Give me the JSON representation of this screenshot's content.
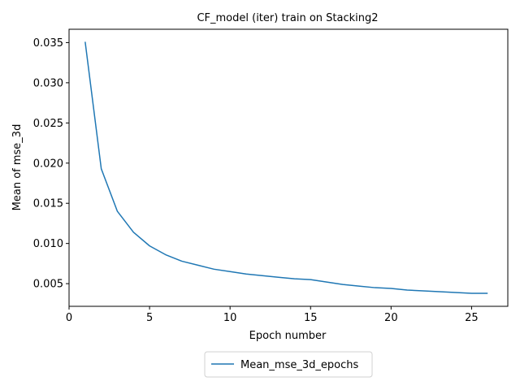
{
  "chart_data": {
    "type": "line",
    "title": "CF_model (iter) train on Stacking2",
    "xlabel": "Epoch number",
    "ylabel": "Mean of mse_3d",
    "xlim": [
      0,
      27.25
    ],
    "ylim": [
      0.00218,
      0.03666
    ],
    "xticks": [
      0,
      5,
      10,
      15,
      20,
      25
    ],
    "xtick_labels": [
      "0",
      "5",
      "10",
      "15",
      "20",
      "25"
    ],
    "yticks": [
      0.005,
      0.01,
      0.015,
      0.02,
      0.025,
      0.03,
      0.035
    ],
    "ytick_labels": [
      "0.005",
      "0.010",
      "0.015",
      "0.020",
      "0.025",
      "0.030",
      "0.035"
    ],
    "grid": false,
    "legend_placement": "bottom-center",
    "series": [
      {
        "name": "Mean_mse_3d_epochs",
        "color": "#1f77b4",
        "x": [
          1,
          2,
          3,
          4,
          5,
          6,
          7,
          8,
          9,
          10,
          11,
          12,
          13,
          14,
          15,
          16,
          17,
          18,
          19,
          20,
          21,
          22,
          23,
          24,
          25,
          26
        ],
        "y": [
          0.0351,
          0.0193,
          0.014,
          0.0114,
          0.0097,
          0.0086,
          0.0078,
          0.0073,
          0.0068,
          0.0065,
          0.0062,
          0.006,
          0.0058,
          0.0056,
          0.0055,
          0.0052,
          0.0049,
          0.0047,
          0.0045,
          0.0044,
          0.0042,
          0.0041,
          0.004,
          0.0039,
          0.0038,
          0.0038
        ]
      }
    ]
  }
}
